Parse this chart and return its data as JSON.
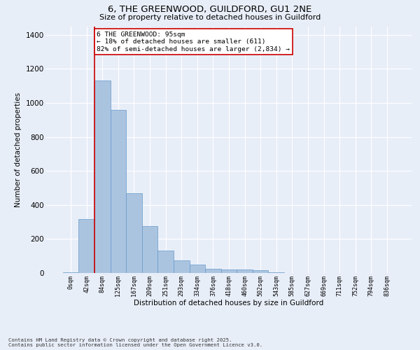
{
  "title_line1": "6, THE GREENWOOD, GUILDFORD, GU1 2NE",
  "title_line2": "Size of property relative to detached houses in Guildford",
  "xlabel": "Distribution of detached houses by size in Guildford",
  "ylabel": "Number of detached properties",
  "bar_labels": [
    "0sqm",
    "42sqm",
    "84sqm",
    "125sqm",
    "167sqm",
    "209sqm",
    "251sqm",
    "293sqm",
    "334sqm",
    "376sqm",
    "418sqm",
    "460sqm",
    "502sqm",
    "543sqm",
    "585sqm",
    "627sqm",
    "669sqm",
    "711sqm",
    "752sqm",
    "794sqm",
    "836sqm"
  ],
  "bar_heights": [
    5,
    315,
    1130,
    960,
    470,
    275,
    130,
    75,
    50,
    25,
    20,
    20,
    15,
    5,
    2,
    2,
    2,
    0,
    0,
    0,
    0
  ],
  "bar_color": "#aac4e0",
  "bar_edge_color": "#6699cc",
  "ylim": [
    0,
    1450
  ],
  "yticks": [
    0,
    200,
    400,
    600,
    800,
    1000,
    1200,
    1400
  ],
  "vline_x_index": 2,
  "vline_color": "#cc0000",
  "annotation_text": "6 THE GREENWOOD: 95sqm\n← 18% of detached houses are smaller (611)\n82% of semi-detached houses are larger (2,834) →",
  "annotation_box_color": "#cc0000",
  "background_color": "#e8eef8",
  "grid_color": "#ffffff",
  "footer_line1": "Contains HM Land Registry data © Crown copyright and database right 2025.",
  "footer_line2": "Contains public sector information licensed under the Open Government Licence v3.0."
}
